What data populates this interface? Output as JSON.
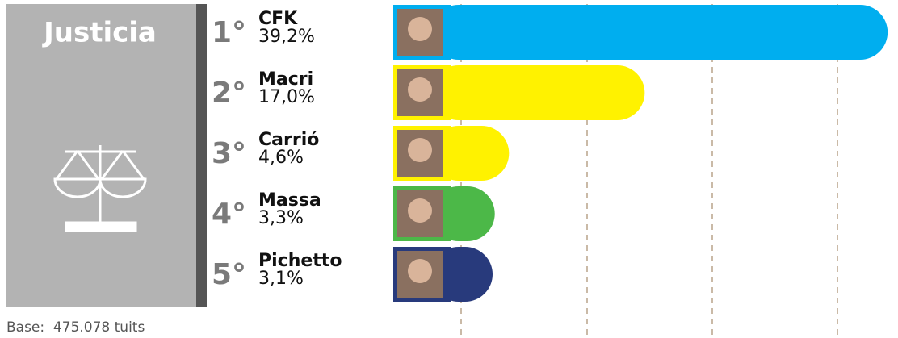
{
  "chart_data": {
    "type": "bar",
    "orientation": "horizontal",
    "title": "Justicia",
    "ranks": [
      "1°",
      "2°",
      "3°",
      "4°",
      "5°"
    ],
    "categories": [
      "CFK",
      "Macri",
      "Carrió",
      "Massa",
      "Pichetto"
    ],
    "values": [
      39.2,
      17.0,
      4.6,
      3.3,
      3.1
    ],
    "value_labels": [
      "39,2%",
      "17,0%",
      "4,6%",
      "3,3%",
      "3,1%"
    ],
    "colors": [
      "#00aeef",
      "#fff200",
      "#fff200",
      "#4cb848",
      "#283a7c"
    ],
    "xlim": [
      0,
      40
    ],
    "note": "Base:  475.078 tuits"
  }
}
